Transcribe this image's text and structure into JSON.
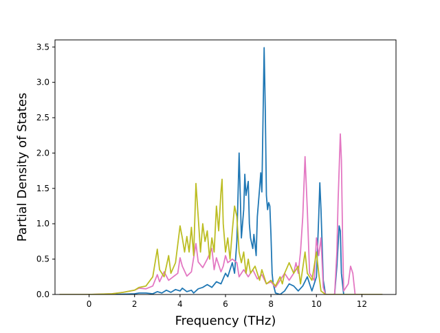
{
  "chart_data": {
    "type": "line",
    "title": "",
    "xlabel": "Frequency (THz)",
    "ylabel": "Partial Density of States",
    "xlim": [
      -1.5,
      13.5
    ],
    "ylim": [
      0.0,
      3.6
    ],
    "x_ticks": [
      0,
      2,
      4,
      6,
      8,
      10,
      12
    ],
    "y_ticks": [
      0.0,
      0.5,
      1.0,
      1.5,
      2.0,
      2.5,
      3.0,
      3.5
    ],
    "x_tick_labels": [
      "0",
      "2",
      "4",
      "6",
      "8",
      "10",
      "12"
    ],
    "y_tick_labels": [
      "0.0",
      "0.5",
      "1.0",
      "1.5",
      "2.0",
      "2.5",
      "3.0",
      "3.5"
    ],
    "grid": false,
    "legend": "none",
    "series": [
      {
        "color": "#1f77b4",
        "points": [
          [
            -1.3,
            0
          ],
          [
            0,
            0
          ],
          [
            1.0,
            0
          ],
          [
            1.5,
            0.005
          ],
          [
            2.0,
            0.01
          ],
          [
            2.2,
            0.02
          ],
          [
            2.5,
            0.02
          ],
          [
            2.8,
            0.01
          ],
          [
            3.0,
            0.04
          ],
          [
            3.2,
            0.02
          ],
          [
            3.4,
            0.06
          ],
          [
            3.6,
            0.03
          ],
          [
            3.8,
            0.07
          ],
          [
            4.0,
            0.05
          ],
          [
            4.1,
            0.09
          ],
          [
            4.3,
            0.04
          ],
          [
            4.5,
            0.06
          ],
          [
            4.6,
            0.02
          ],
          [
            4.8,
            0.08
          ],
          [
            5.0,
            0.1
          ],
          [
            5.2,
            0.14
          ],
          [
            5.4,
            0.1
          ],
          [
            5.6,
            0.18
          ],
          [
            5.8,
            0.15
          ],
          [
            6.0,
            0.3
          ],
          [
            6.1,
            0.25
          ],
          [
            6.3,
            0.45
          ],
          [
            6.4,
            0.3
          ],
          [
            6.5,
            0.75
          ],
          [
            6.55,
            1.4
          ],
          [
            6.6,
            2.0
          ],
          [
            6.65,
            1.4
          ],
          [
            6.7,
            0.8
          ],
          [
            6.8,
            1.2
          ],
          [
            6.85,
            1.7
          ],
          [
            6.9,
            1.4
          ],
          [
            7.0,
            1.6
          ],
          [
            7.05,
            1.0
          ],
          [
            7.1,
            0.8
          ],
          [
            7.2,
            0.65
          ],
          [
            7.25,
            0.85
          ],
          [
            7.3,
            0.7
          ],
          [
            7.35,
            0.55
          ],
          [
            7.4,
            1.1
          ],
          [
            7.5,
            1.5
          ],
          [
            7.55,
            1.72
          ],
          [
            7.6,
            1.45
          ],
          [
            7.65,
            2.5
          ],
          [
            7.7,
            3.49
          ],
          [
            7.75,
            2.6
          ],
          [
            7.8,
            1.4
          ],
          [
            7.85,
            1.2
          ],
          [
            7.9,
            1.3
          ],
          [
            7.95,
            1.25
          ],
          [
            8.0,
            0.85
          ],
          [
            8.05,
            0.3
          ],
          [
            8.1,
            0.15
          ],
          [
            8.2,
            0.02
          ],
          [
            8.4,
            0.0
          ],
          [
            8.6,
            0.05
          ],
          [
            8.8,
            0.15
          ],
          [
            9.0,
            0.12
          ],
          [
            9.2,
            0.05
          ],
          [
            9.4,
            0.12
          ],
          [
            9.6,
            0.25
          ],
          [
            9.7,
            0.15
          ],
          [
            9.8,
            0.05
          ],
          [
            10.0,
            0.25
          ],
          [
            10.1,
            1.1
          ],
          [
            10.15,
            1.58
          ],
          [
            10.2,
            1.2
          ],
          [
            10.3,
            0.2
          ],
          [
            10.4,
            0.0
          ],
          [
            10.8,
            0.0
          ],
          [
            10.9,
            0.4
          ],
          [
            11.0,
            0.97
          ],
          [
            11.05,
            0.9
          ],
          [
            11.1,
            0.3
          ],
          [
            11.2,
            0.0
          ],
          [
            12.9,
            0.0
          ]
        ]
      },
      {
        "color": "#e377c2",
        "points": [
          [
            -1.3,
            0
          ],
          [
            0,
            0
          ],
          [
            0.5,
            0.005
          ],
          [
            1.0,
            0.01
          ],
          [
            1.5,
            0.03
          ],
          [
            2.0,
            0.06
          ],
          [
            2.2,
            0.09
          ],
          [
            2.5,
            0.08
          ],
          [
            2.8,
            0.12
          ],
          [
            3.0,
            0.28
          ],
          [
            3.1,
            0.18
          ],
          [
            3.3,
            0.32
          ],
          [
            3.5,
            0.2
          ],
          [
            3.7,
            0.25
          ],
          [
            3.9,
            0.3
          ],
          [
            4.0,
            0.52
          ],
          [
            4.1,
            0.4
          ],
          [
            4.3,
            0.26
          ],
          [
            4.5,
            0.32
          ],
          [
            4.7,
            0.72
          ],
          [
            4.8,
            0.46
          ],
          [
            5.0,
            0.38
          ],
          [
            5.2,
            0.5
          ],
          [
            5.4,
            0.65
          ],
          [
            5.5,
            0.35
          ],
          [
            5.6,
            0.52
          ],
          [
            5.8,
            0.32
          ],
          [
            5.9,
            0.4
          ],
          [
            6.0,
            0.55
          ],
          [
            6.1,
            0.45
          ],
          [
            6.3,
            0.5
          ],
          [
            6.5,
            0.45
          ],
          [
            6.6,
            0.25
          ],
          [
            6.8,
            0.35
          ],
          [
            7.0,
            0.25
          ],
          [
            7.2,
            0.35
          ],
          [
            7.4,
            0.22
          ],
          [
            7.6,
            0.28
          ],
          [
            7.8,
            0.15
          ],
          [
            8.0,
            0.18
          ],
          [
            8.2,
            0.1
          ],
          [
            8.4,
            0.2
          ],
          [
            8.6,
            0.3
          ],
          [
            8.8,
            0.2
          ],
          [
            9.0,
            0.3
          ],
          [
            9.1,
            0.45
          ],
          [
            9.2,
            0.3
          ],
          [
            9.3,
            0.6
          ],
          [
            9.4,
            1.1
          ],
          [
            9.5,
            1.95
          ],
          [
            9.6,
            1.2
          ],
          [
            9.7,
            0.3
          ],
          [
            9.9,
            0.2
          ],
          [
            10.0,
            0.8
          ],
          [
            10.1,
            0.55
          ],
          [
            10.2,
            0.8
          ],
          [
            10.3,
            0.1
          ],
          [
            10.4,
            0.0
          ],
          [
            10.8,
            0.0
          ],
          [
            10.9,
            0.6
          ],
          [
            10.95,
            1.3
          ],
          [
            11.05,
            2.27
          ],
          [
            11.1,
            1.9
          ],
          [
            11.15,
            0.8
          ],
          [
            11.2,
            0.05
          ],
          [
            11.4,
            0.15
          ],
          [
            11.5,
            0.4
          ],
          [
            11.6,
            0.3
          ],
          [
            11.7,
            0.0
          ],
          [
            12.9,
            0.0
          ]
        ]
      },
      {
        "color": "#bcbd22",
        "points": [
          [
            -1.3,
            0
          ],
          [
            0,
            0
          ],
          [
            0.5,
            0.005
          ],
          [
            1.0,
            0.01
          ],
          [
            1.5,
            0.03
          ],
          [
            2.0,
            0.06
          ],
          [
            2.2,
            0.1
          ],
          [
            2.5,
            0.12
          ],
          [
            2.8,
            0.25
          ],
          [
            3.0,
            0.64
          ],
          [
            3.1,
            0.35
          ],
          [
            3.3,
            0.25
          ],
          [
            3.5,
            0.55
          ],
          [
            3.6,
            0.3
          ],
          [
            3.8,
            0.45
          ],
          [
            4.0,
            0.97
          ],
          [
            4.1,
            0.8
          ],
          [
            4.2,
            0.6
          ],
          [
            4.3,
            0.82
          ],
          [
            4.4,
            0.6
          ],
          [
            4.5,
            0.95
          ],
          [
            4.6,
            0.55
          ],
          [
            4.7,
            1.57
          ],
          [
            4.8,
            1.1
          ],
          [
            4.9,
            0.6
          ],
          [
            5.0,
            1.0
          ],
          [
            5.1,
            0.75
          ],
          [
            5.2,
            0.9
          ],
          [
            5.3,
            0.5
          ],
          [
            5.4,
            0.8
          ],
          [
            5.5,
            0.6
          ],
          [
            5.6,
            1.25
          ],
          [
            5.7,
            0.9
          ],
          [
            5.8,
            1.45
          ],
          [
            5.85,
            1.63
          ],
          [
            5.9,
            1.0
          ],
          [
            6.0,
            0.6
          ],
          [
            6.1,
            0.8
          ],
          [
            6.2,
            0.5
          ],
          [
            6.3,
            0.9
          ],
          [
            6.4,
            1.25
          ],
          [
            6.5,
            1.1
          ],
          [
            6.6,
            0.6
          ],
          [
            6.7,
            0.45
          ],
          [
            6.8,
            0.6
          ],
          [
            6.9,
            0.3
          ],
          [
            7.0,
            0.5
          ],
          [
            7.1,
            0.3
          ],
          [
            7.3,
            0.4
          ],
          [
            7.5,
            0.2
          ],
          [
            7.6,
            0.35
          ],
          [
            7.8,
            0.15
          ],
          [
            8.0,
            0.2
          ],
          [
            8.2,
            0.12
          ],
          [
            8.4,
            0.25
          ],
          [
            8.5,
            0.15
          ],
          [
            8.6,
            0.3
          ],
          [
            8.8,
            0.45
          ],
          [
            9.0,
            0.3
          ],
          [
            9.2,
            0.4
          ],
          [
            9.3,
            0.15
          ],
          [
            9.5,
            0.6
          ],
          [
            9.6,
            0.3
          ],
          [
            9.8,
            0.2
          ],
          [
            10.0,
            0.6
          ],
          [
            10.1,
            0.3
          ],
          [
            10.2,
            0.05
          ],
          [
            10.4,
            0.0
          ],
          [
            12.9,
            0.0
          ]
        ]
      }
    ]
  }
}
